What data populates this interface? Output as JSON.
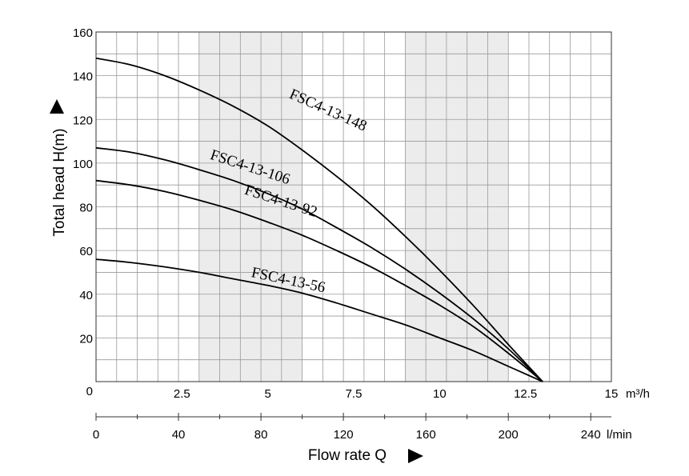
{
  "chart_data": {
    "type": "line",
    "ylabel": "Total head H(m)",
    "xlabel": "Flow rate Q",
    "y_unit": "",
    "x_unit_primary": "m³/h",
    "x_unit_secondary": "l/min",
    "ylim": [
      0,
      160
    ],
    "xlim": [
      0,
      15
    ],
    "y_ticks": [
      "0",
      "20",
      "40",
      "60",
      "80",
      "100",
      "120",
      "140",
      "160"
    ],
    "x_ticks_primary": [
      "2.5",
      "5",
      "7.5",
      "10",
      "12.5",
      "15"
    ],
    "x_ticks_secondary": [
      "0",
      "40",
      "80",
      "120",
      "160",
      "200",
      "240"
    ],
    "x_ticks_secondary_values": [
      0,
      40,
      80,
      120,
      160,
      200,
      240
    ],
    "shaded_bands": [
      [
        3,
        6
      ],
      [
        9,
        12
      ]
    ],
    "grid": true,
    "series": [
      {
        "name": "FSC4-13-148",
        "x": [
          0,
          1,
          2,
          3,
          4,
          5,
          6,
          7,
          8,
          9,
          10,
          11,
          12,
          13
        ],
        "y": [
          148,
          145,
          140,
          133.5,
          126,
          117,
          106,
          94,
          81,
          66.5,
          51,
          34.5,
          17,
          0
        ]
      },
      {
        "name": "FSC4-13-106",
        "x": [
          0,
          1,
          2,
          3,
          4,
          5,
          6,
          7,
          8,
          9,
          10,
          11,
          12,
          13
        ],
        "y": [
          107,
          105,
          101.5,
          97,
          92,
          86,
          79,
          70.5,
          61.5,
          51.5,
          40.5,
          28.5,
          15,
          0
        ]
      },
      {
        "name": "FSC4-13-92",
        "x": [
          0,
          1,
          2,
          3,
          4,
          5,
          6,
          7,
          8,
          9,
          10,
          11,
          12,
          13
        ],
        "y": [
          92,
          90,
          87,
          83,
          78.5,
          73,
          67,
          60,
          52.5,
          44,
          35,
          25,
          13,
          0
        ]
      },
      {
        "name": "FSC4-13-56",
        "x": [
          0,
          1,
          2,
          3,
          4,
          5,
          6,
          7,
          8,
          9,
          10,
          11,
          12,
          13
        ],
        "y": [
          56,
          54.5,
          52.5,
          50,
          47,
          44,
          40.5,
          36,
          31,
          26,
          20,
          14,
          7,
          0
        ]
      }
    ],
    "annotations": [
      {
        "text": "FSC4-13-148",
        "at_x": 5.6,
        "at_y": 130
      },
      {
        "text": "FSC4-13-106",
        "at_x": 3.3,
        "at_y": 102
      },
      {
        "text": "FSC4-13-92",
        "at_x": 4.3,
        "at_y": 86
      },
      {
        "text": "FSC4-13-56",
        "at_x": 4.5,
        "at_y": 48
      }
    ]
  }
}
